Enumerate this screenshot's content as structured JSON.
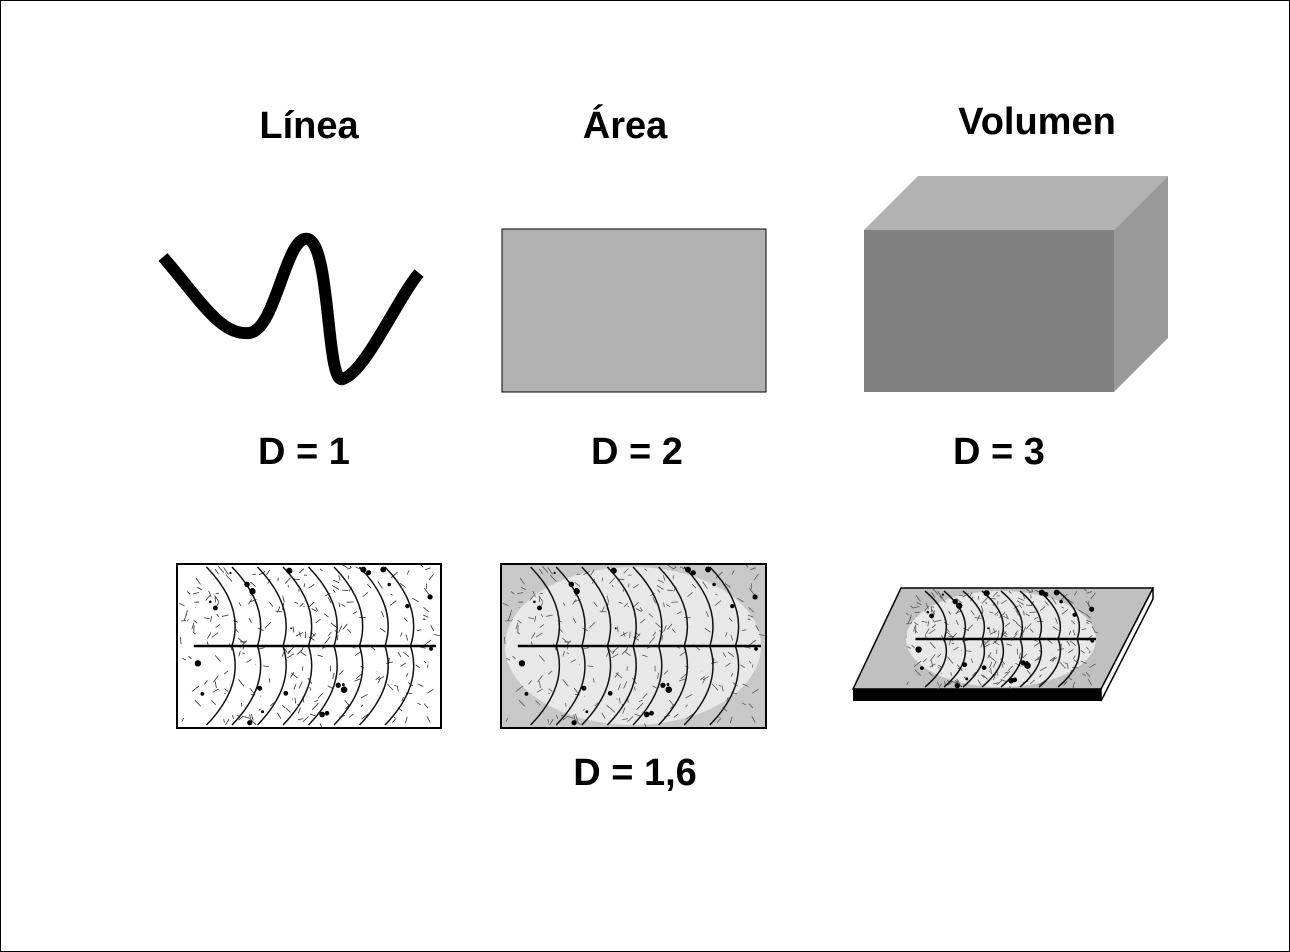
{
  "titles": {
    "line": "Línea",
    "area": "Área",
    "volume": "Volumen"
  },
  "dimensions": {
    "line": "D = 1",
    "area": "D = 2",
    "volume": "D = 3",
    "leaf": "D = 1,6"
  },
  "colors": {
    "area_fill": "#b2b2b2",
    "cube_front": "#808080",
    "cube_top": "#b2b2b2",
    "cube_side": "#9a9a9a",
    "leaf_gray_bg": "#c8c8c8",
    "slab_top": "#c0c0c0"
  }
}
